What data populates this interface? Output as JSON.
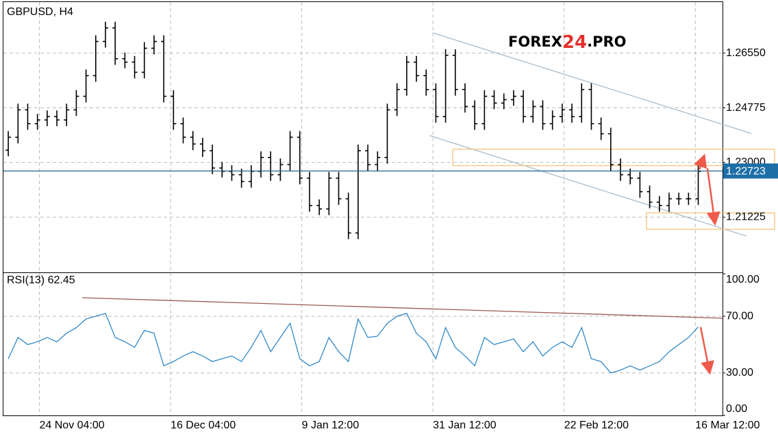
{
  "chart_data": [
    {
      "type": "ohlc",
      "title": "GBPUSD, H4",
      "color": "#000000",
      "watermark": [
        "FOREX",
        "24",
        ".PRO"
      ],
      "open": [
        1.234,
        1.2382,
        1.2471,
        1.2426,
        1.2438,
        1.2449,
        1.2438,
        1.2471,
        1.2515,
        1.2582,
        1.2693,
        1.2737,
        1.2637,
        1.2626,
        1.2593,
        1.2671,
        1.2693,
        1.2515,
        1.2426,
        1.2382,
        1.236,
        1.2338,
        1.2282,
        1.2271,
        1.226,
        1.2238,
        1.2271,
        1.2316,
        1.226,
        1.2293,
        1.2382,
        1.2249,
        1.216,
        1.2149,
        1.2249,
        1.2182,
        1.2071,
        1.2338,
        1.2293,
        1.2316,
        1.2471,
        1.2537,
        1.2626,
        1.2582,
        1.2537,
        1.2449,
        1.2648,
        1.2537,
        1.2482,
        1.2426,
        1.2515,
        1.2493,
        1.2504,
        1.2515,
        1.2449,
        1.2482,
        1.2426,
        1.2449,
        1.2471,
        1.2449,
        1.2537,
        1.2426,
        1.2393,
        1.2293,
        1.226,
        1.2249,
        1.2205,
        1.2171,
        1.216,
        1.2182,
        1.2182,
        1.2182
      ],
      "high": [
        1.2402,
        1.2491,
        1.2491,
        1.2458,
        1.2469,
        1.2469,
        1.2491,
        1.2535,
        1.2602,
        1.2713,
        1.2757,
        1.2757,
        1.2657,
        1.2646,
        1.2691,
        1.2713,
        1.2713,
        1.2535,
        1.2446,
        1.2402,
        1.238,
        1.2358,
        1.2302,
        1.2291,
        1.228,
        1.2291,
        1.2336,
        1.2336,
        1.2313,
        1.2402,
        1.2402,
        1.2269,
        1.218,
        1.2269,
        1.2269,
        1.2202,
        1.2358,
        1.2358,
        1.2336,
        1.2491,
        1.2557,
        1.2646,
        1.2646,
        1.2602,
        1.2557,
        1.2668,
        1.2668,
        1.2557,
        1.2502,
        1.2535,
        1.2535,
        1.2524,
        1.2535,
        1.2535,
        1.2502,
        1.2502,
        1.2469,
        1.2491,
        1.2491,
        1.2557,
        1.2557,
        1.2446,
        1.2413,
        1.2313,
        1.228,
        1.2269,
        1.2225,
        1.2191,
        1.2202,
        1.2202,
        1.2202,
        1.2291
      ],
      "low": [
        1.232,
        1.2362,
        1.2406,
        1.2406,
        1.2418,
        1.2418,
        1.2418,
        1.2451,
        1.2495,
        1.2562,
        1.2673,
        1.2617,
        1.2606,
        1.2573,
        1.2573,
        1.2651,
        1.2495,
        1.2406,
        1.2362,
        1.234,
        1.2318,
        1.2262,
        1.2251,
        1.224,
        1.2218,
        1.2218,
        1.2251,
        1.224,
        1.224,
        1.2273,
        1.2229,
        1.214,
        1.2129,
        1.2129,
        1.2162,
        1.2051,
        1.2051,
        1.2273,
        1.2273,
        1.2296,
        1.2451,
        1.2517,
        1.2562,
        1.2517,
        1.2429,
        1.2429,
        1.2517,
        1.2462,
        1.2406,
        1.2406,
        1.2473,
        1.2473,
        1.2484,
        1.2429,
        1.2429,
        1.2406,
        1.2406,
        1.2429,
        1.2429,
        1.2429,
        1.2406,
        1.2373,
        1.2273,
        1.224,
        1.2229,
        1.2185,
        1.2151,
        1.214,
        1.214,
        1.2162,
        1.2162,
        1.2162
      ],
      "close": [
        1.2382,
        1.2471,
        1.2426,
        1.2438,
        1.2449,
        1.2438,
        1.2471,
        1.2515,
        1.2582,
        1.2693,
        1.2737,
        1.2637,
        1.2626,
        1.2593,
        1.2671,
        1.2693,
        1.2515,
        1.2426,
        1.2382,
        1.236,
        1.2338,
        1.2282,
        1.2271,
        1.226,
        1.2238,
        1.2271,
        1.2316,
        1.226,
        1.2293,
        1.2382,
        1.2249,
        1.216,
        1.2149,
        1.2249,
        1.2182,
        1.2071,
        1.2338,
        1.2293,
        1.2316,
        1.2471,
        1.2537,
        1.2626,
        1.2582,
        1.2537,
        1.2449,
        1.2648,
        1.2537,
        1.2482,
        1.2426,
        1.2515,
        1.2493,
        1.2504,
        1.2515,
        1.2449,
        1.2482,
        1.2426,
        1.2449,
        1.2471,
        1.2449,
        1.2537,
        1.2426,
        1.2393,
        1.2293,
        1.226,
        1.2249,
        1.2205,
        1.2171,
        1.216,
        1.2182,
        1.2182,
        1.2182,
        1.2271
      ],
      "ylim": [
        1.1943,
        1.2821
      ],
      "yticks": [
        {
          "value": 1.2655,
          "label": "1.26550"
        },
        1.24775,
        {
          "value": 1.23,
          "label": "1.23000"
        },
        1.21225
      ],
      "current_price": 1.22723,
      "xlim": [
        -0.5,
        73.5
      ],
      "xticks": [
        {
          "value": 3.2,
          "label": "24 Nov 04:00"
        },
        {
          "value": 16.7,
          "label": "16 Dec 04:00"
        },
        {
          "value": 30.2,
          "label": "9 Jan 12:00"
        },
        {
          "value": 43.7,
          "label": "31 Jan 12:00"
        },
        {
          "value": 57.2,
          "label": "22 Feb 12:00"
        },
        {
          "value": 70.7,
          "label": "16 Mar 12:00"
        }
      ],
      "grid": true
    },
    {
      "type": "line",
      "title": "RSI(13) 62.45",
      "color": "#1f7fc4",
      "values": [
        40,
        55,
        50,
        52,
        55,
        52,
        58,
        62,
        68,
        70,
        72,
        55,
        52,
        48,
        60,
        58,
        35,
        38,
        42,
        45,
        42,
        38,
        40,
        42,
        38,
        48,
        60,
        45,
        55,
        65,
        40,
        35,
        38,
        55,
        45,
        38,
        68,
        55,
        56,
        65,
        70,
        72,
        58,
        52,
        40,
        62,
        48,
        42,
        35,
        55,
        50,
        52,
        54,
        45,
        52,
        42,
        48,
        52,
        48,
        62,
        40,
        38,
        30,
        32,
        35,
        32,
        35,
        38,
        45,
        50,
        55,
        62.45
      ],
      "ylim": [
        0,
        100
      ],
      "yticks": [
        {
          "value": 0,
          "label": "0.00"
        },
        {
          "value": 30,
          "label": "30.00"
        },
        {
          "value": 70,
          "label": "70.00"
        },
        {
          "value": 100,
          "label": "100.00"
        }
      ],
      "grid": true
    }
  ]
}
